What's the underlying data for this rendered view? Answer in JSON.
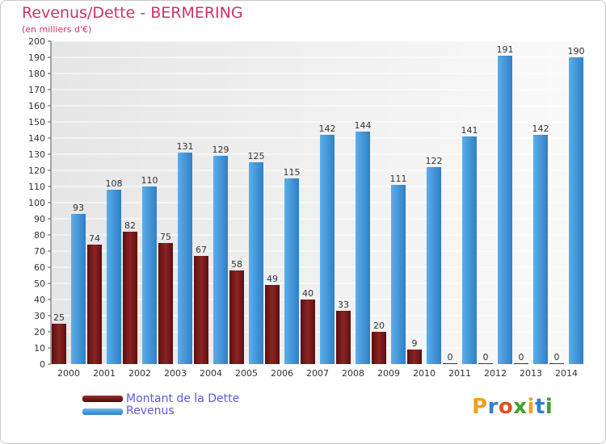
{
  "chart_data": {
    "type": "bar",
    "title": "Revenus/Dette - BERMERING",
    "subtitle": "(en milliers d'€)",
    "categories": [
      "2000",
      "2001",
      "2002",
      "2003",
      "2004",
      "2005",
      "2006",
      "2007",
      "2008",
      "2009",
      "2010",
      "2011",
      "2012",
      "2013",
      "2014"
    ],
    "series": [
      {
        "name": "Montant de la Dette",
        "color": "#7a1a1a",
        "values": [
          25,
          74,
          82,
          75,
          67,
          58,
          49,
          40,
          33,
          20,
          9,
          0,
          0,
          0,
          0
        ]
      },
      {
        "name": "Revenus",
        "color": "#3a8fd8",
        "values": [
          93,
          108,
          110,
          131,
          129,
          125,
          115,
          142,
          144,
          111,
          122,
          141,
          191,
          142,
          190
        ]
      }
    ],
    "ylim": [
      0,
      200
    ],
    "ytick_step": 10,
    "grid": true,
    "legend_position": "bottom-left"
  },
  "legend": {
    "debt_label": "Montant de la Dette",
    "revenue_label": "Revenus"
  },
  "logo": {
    "letters": [
      "P",
      "r",
      "o",
      "x",
      "i",
      "t",
      "i"
    ],
    "colors": [
      "#f0a020",
      "#2f7fd0",
      "#e05020",
      "#40a030",
      "#f0a020",
      "#2f7fd0",
      "#40a030"
    ]
  }
}
